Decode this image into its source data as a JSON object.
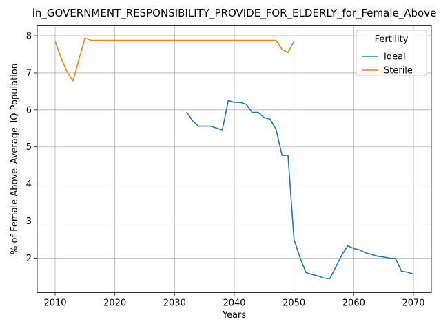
{
  "chart_data": {
    "type": "line",
    "title": "in_GOVERNMENT_RESPONSIBILITY_PROVIDE_FOR_ELDERLY_for_Female_Above",
    "xlabel": "Years",
    "ylabel": "% of Female Above_Average_IQ Population",
    "xlim": [
      2007,
      2073
    ],
    "ylim": [
      1.07,
      8.27
    ],
    "xticks": [
      2010,
      2020,
      2030,
      2040,
      2050,
      2060,
      2070
    ],
    "yticks": [
      2,
      3,
      4,
      5,
      6,
      7,
      8
    ],
    "grid": true,
    "legend": {
      "title": "Fertility",
      "placement": "top-right"
    },
    "series": [
      {
        "name": "Ideal",
        "color": "#1f77b4",
        "x": [
          2032,
          2033,
          2034,
          2035,
          2036,
          2037,
          2038,
          2039,
          2040,
          2041,
          2042,
          2043,
          2044,
          2045,
          2046,
          2047,
          2048,
          2049,
          2050,
          2051,
          2052,
          2053,
          2054,
          2055,
          2056,
          2057,
          2058,
          2059,
          2060,
          2061,
          2062,
          2063,
          2064,
          2065,
          2066,
          2067,
          2068,
          2069,
          2070
        ],
        "y": [
          5.94,
          5.71,
          5.56,
          5.56,
          5.56,
          5.51,
          5.46,
          6.25,
          6.2,
          6.2,
          6.15,
          5.93,
          5.93,
          5.79,
          5.75,
          5.47,
          4.77,
          4.77,
          2.5,
          2.02,
          1.61,
          1.56,
          1.52,
          1.46,
          1.45,
          1.76,
          2.08,
          2.33,
          2.26,
          2.22,
          2.14,
          2.1,
          2.05,
          2.03,
          2.0,
          1.99,
          1.65,
          1.62,
          1.57
        ]
      },
      {
        "name": "Sterile",
        "color": "#ff7f0e",
        "x": [
          2010,
          2011,
          2012,
          2013,
          2014,
          2015,
          2016,
          2020,
          2030,
          2040,
          2047,
          2048,
          2049,
          2050
        ],
        "y": [
          7.85,
          7.4,
          7.02,
          6.78,
          7.37,
          7.94,
          7.88,
          7.88,
          7.88,
          7.88,
          7.88,
          7.63,
          7.55,
          7.86
        ]
      }
    ]
  }
}
